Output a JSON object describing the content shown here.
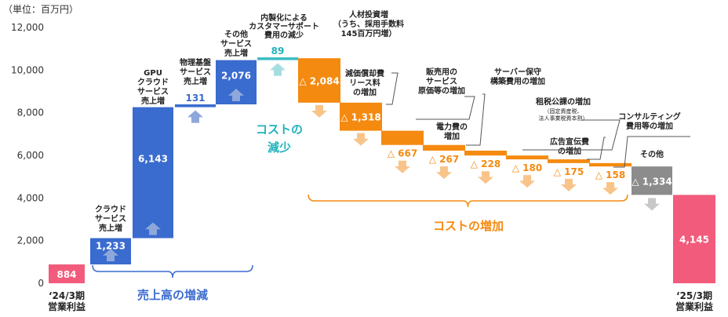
{
  "chart_data": {
    "type": "waterfall",
    "unit_label": "（単位：百万円）",
    "y_ticks": [
      "0",
      "2,000",
      "4,000",
      "6,000",
      "8,000",
      "10,000",
      "12,000"
    ],
    "ylim": [
      0,
      12000
    ],
    "colors": {
      "total": "#f25b7b",
      "revenue": "#3a6bcf",
      "cost_decrease": "#3bbcc4",
      "cost_increase": "#f58a10",
      "other": "#8c8c8c",
      "arrow_up_blue": "#8fa8db",
      "arrow_up_teal": "#a6dde0",
      "arrow_down_orange": "#f9c48a",
      "arrow_down_gray": "#c8c8c8",
      "group_blue": "#3a6bcf",
      "group_teal": "#1fb2bb",
      "group_orange": "#f58a10"
    },
    "bars": [
      {
        "kind": "total",
        "value": 884,
        "display": "884",
        "label_lines": [
          "‘24/3期",
          "営業利益"
        ]
      },
      {
        "kind": "revenue",
        "value": 1233,
        "display": "1,233",
        "label_lines": [
          "クラウド",
          "サービス",
          "売上増"
        ]
      },
      {
        "kind": "revenue",
        "value": 6143,
        "display": "6,143",
        "label_lines": [
          "GPU",
          "クラウド",
          "サービス",
          "売上増"
        ]
      },
      {
        "kind": "revenue",
        "value": 131,
        "display": "131",
        "label_lines": [
          "物理基盤",
          "サービス",
          "売上増"
        ]
      },
      {
        "kind": "revenue",
        "value": 2076,
        "display": "2,076",
        "label_lines": [
          "その他",
          "サービス",
          "売上増"
        ]
      },
      {
        "kind": "cost_decrease",
        "value": 89,
        "display": "89",
        "label_lines": [
          "内製化による",
          "カスタマーサポート",
          "費用の減少"
        ]
      },
      {
        "kind": "cost_increase",
        "value": -2084,
        "display": "△ 2,084",
        "label_lines": [
          "人材投資増",
          "（うち、採用手数料",
          "145百万円増）"
        ]
      },
      {
        "kind": "cost_increase",
        "value": -1318,
        "display": "△ 1,318",
        "label_lines": [
          "減価償却費",
          "リース料",
          "の増加"
        ]
      },
      {
        "kind": "cost_increase",
        "value": -667,
        "display": "△ 667",
        "label_lines": [
          "販売用の",
          "サービス",
          "原価等の増加"
        ]
      },
      {
        "kind": "cost_increase",
        "value": -267,
        "display": "△ 267",
        "label_lines": [
          "電力費の",
          "増加"
        ]
      },
      {
        "kind": "cost_increase",
        "value": -228,
        "display": "△ 228",
        "label_lines": [
          "サーバー保守",
          "構築費用の増加"
        ]
      },
      {
        "kind": "cost_increase",
        "value": -180,
        "display": "△ 180",
        "label_lines": [
          "租税公課の増加"
        ],
        "sub_lines": [
          "（固定資産税、",
          "法人事業税資本割）"
        ]
      },
      {
        "kind": "cost_increase",
        "value": -175,
        "display": "△ 175",
        "label_lines": [
          "広告宣伝費",
          "の増加"
        ]
      },
      {
        "kind": "cost_increase",
        "value": -158,
        "display": "△ 158",
        "label_lines": [
          "コンサルティング",
          "費用等の増加"
        ]
      },
      {
        "kind": "other",
        "value": -1334,
        "display": "△ 1,334",
        "label_lines": [
          "その他"
        ]
      },
      {
        "kind": "total",
        "value": 4145,
        "display": "4,145",
        "label_lines": [
          "‘25/3期",
          "営業利益"
        ]
      }
    ],
    "groups": [
      {
        "label": "売上高の増減",
        "color_key": "group_blue"
      },
      {
        "label_lines": [
          "コストの",
          "減少"
        ],
        "color_key": "group_teal"
      },
      {
        "label": "コストの増加",
        "color_key": "group_orange"
      }
    ]
  }
}
